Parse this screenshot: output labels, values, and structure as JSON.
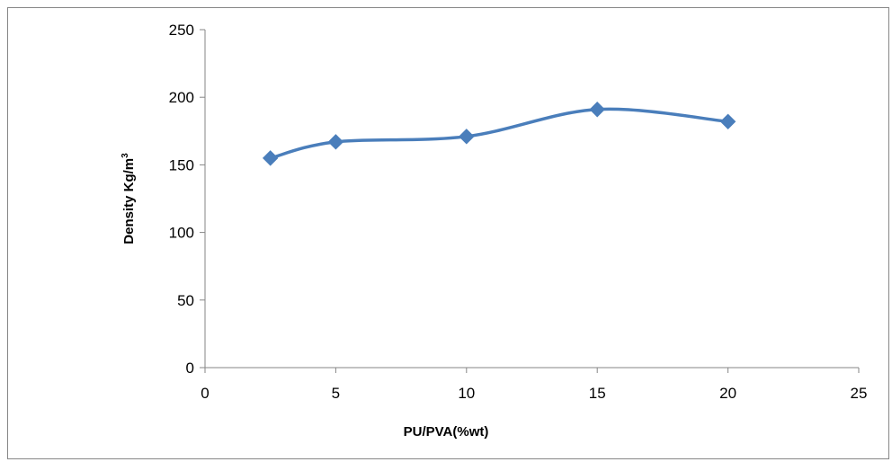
{
  "chart_data": {
    "type": "line",
    "x": [
      2.5,
      5,
      10,
      15,
      20
    ],
    "series": [
      {
        "values": [
          155,
          167,
          171,
          191,
          182
        ]
      }
    ],
    "xlabel": "PU/PVA(%wt)",
    "ylabel_main": "Density Kg/m",
    "ylabel_sup": "3",
    "xlim": [
      0,
      25
    ],
    "ylim": [
      0,
      250
    ],
    "xticks": [
      "0",
      "5",
      "10",
      "15",
      "20",
      "25"
    ],
    "yticks": [
      "0",
      "50",
      "100",
      "150",
      "200",
      "250"
    ],
    "grid": false,
    "smooth": true,
    "marker": "diamond",
    "line_color": "#4a7ebb",
    "marker_color": "#4a7ebb",
    "axis_color": "#868686"
  }
}
